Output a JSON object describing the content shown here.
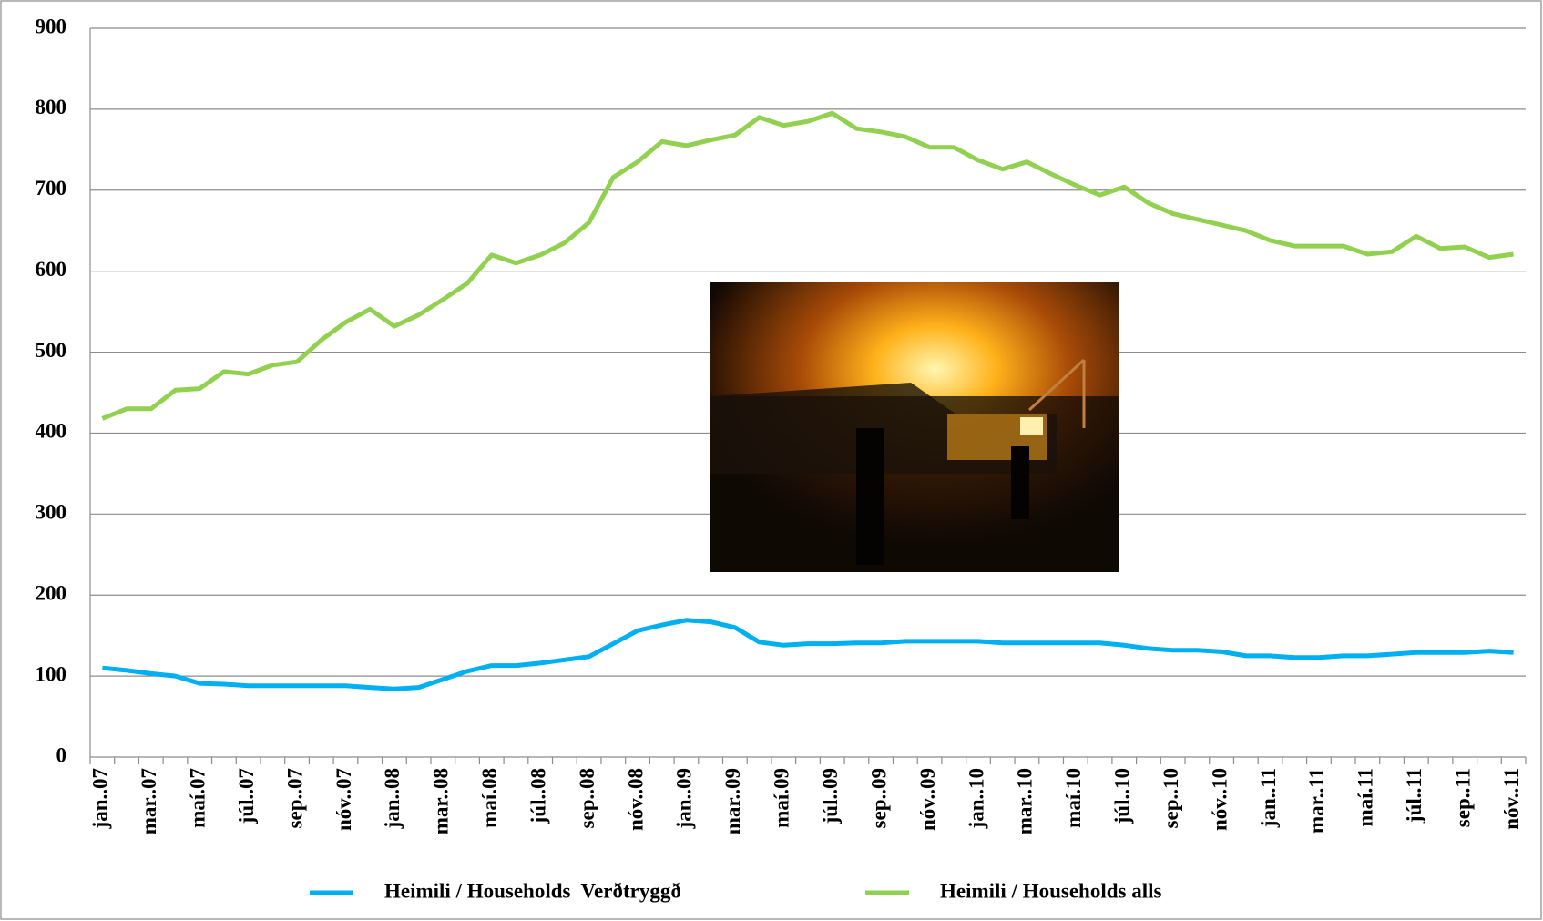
{
  "chart_data": {
    "type": "line",
    "categories": [
      "jan..07",
      null,
      "mar..07",
      null,
      "maí.07",
      null,
      "júl..07",
      null,
      "sep..07",
      null,
      "nóv..07",
      null,
      "jan..08",
      null,
      "mar..08",
      null,
      "maí.08",
      null,
      "júl..08",
      null,
      "sep..08",
      null,
      "nóv..08",
      null,
      "jan..09",
      null,
      "mar..09",
      null,
      "maí.09",
      null,
      "júl..09",
      null,
      "sep..09",
      null,
      "nóv..09",
      null,
      "jan..10",
      null,
      "mar..10",
      null,
      "maí.10",
      null,
      "júl..10",
      null,
      "sep..10",
      null,
      "nóv..10",
      null,
      "jan..11",
      null,
      "mar..11",
      null,
      "maí.11",
      null,
      "júl..11",
      null,
      "sep..11",
      null,
      "nóv..11"
    ],
    "series": [
      {
        "name": "Heimili / Households  Verðtryggð",
        "color": "#00b0f0",
        "values": [
          110,
          107,
          103,
          100,
          91,
          90,
          88,
          88,
          88,
          88,
          88,
          86,
          84,
          86,
          96,
          106,
          113,
          113,
          116,
          120,
          124,
          140,
          156,
          163,
          169,
          167,
          160,
          142,
          138,
          140,
          140,
          141,
          141,
          143,
          143,
          143,
          143,
          141,
          141,
          141,
          141,
          141,
          138,
          134,
          132,
          132,
          130,
          125,
          125,
          123,
          123,
          125,
          125,
          127,
          129,
          129,
          129,
          131,
          129
        ]
      },
      {
        "name": "Heimili / Households alls",
        "color": "#92d050",
        "values": [
          418,
          430,
          430,
          453,
          455,
          476,
          473,
          484,
          488,
          515,
          537,
          553,
          532,
          546,
          565,
          585,
          620,
          610,
          620,
          635,
          660,
          716,
          735,
          760,
          755,
          762,
          768,
          790,
          780,
          785,
          795,
          776,
          772,
          766,
          753,
          753,
          737,
          726,
          735,
          720,
          706,
          694,
          704,
          684,
          671,
          664,
          657,
          650,
          638,
          631,
          631,
          631,
          621,
          624,
          643,
          628,
          630,
          617,
          621
        ]
      }
    ],
    "ylim": [
      0,
      900
    ],
    "yticks": [
      0,
      100,
      200,
      300,
      400,
      500,
      600,
      700,
      800,
      900
    ],
    "grid": true
  }
}
